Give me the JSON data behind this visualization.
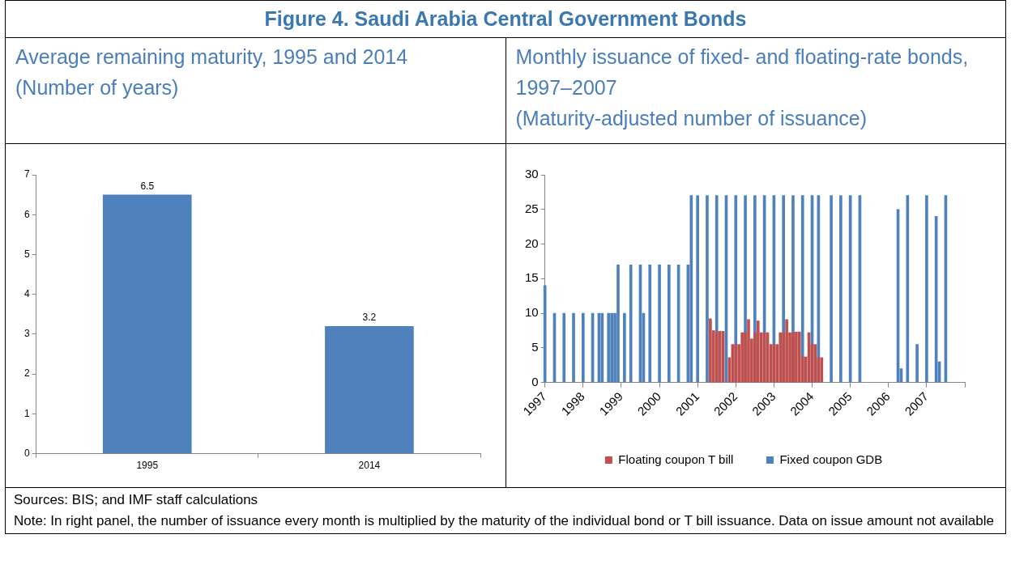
{
  "chart_data": [
    {
      "type": "other",
      "title": "Figure 4. Saudi Arabia Central Government Bonds",
      "annotations": [
        "Sources: BIS; and IMF staff calculations",
        "Note: In right panel, the number of issuance every month is multiplied by the maturity of the individual bond or T bill issuance. Data on issue amount not available"
      ]
    },
    {
      "type": "bar",
      "title": "Average remaining maturity, 1995 and 2014",
      "subtitle": "(Number of years)",
      "categories": [
        "1995",
        "2014"
      ],
      "values": [
        6.5,
        3.2
      ],
      "color": "#4f81bd",
      "ylim": [
        0,
        7
      ],
      "yticks": [
        0,
        1,
        2,
        3,
        4,
        5,
        6,
        7
      ],
      "data_labels": true,
      "grid": false,
      "legend": false
    },
    {
      "type": "bar",
      "title": "Monthly issuance of fixed- and floating-rate bonds, 1997–2007",
      "subtitle": "(Maturity-adjusted number of issuance)",
      "xlim": [
        "1997",
        "2008"
      ],
      "xticks": [
        "1997",
        "1998",
        "1999",
        "2000",
        "2001",
        "2002",
        "2003",
        "2004",
        "2005",
        "2006",
        "2007",
        {
          "value": "2008",
          "label": null
        }
      ],
      "ylim": [
        0,
        30
      ],
      "yticks": [
        0,
        5,
        10,
        15,
        20,
        25,
        30
      ],
      "grid": false,
      "legend": "bottom",
      "series": [
        {
          "name": "Floating coupon T bill",
          "color": "#c0504d",
          "x": [
            "2001-05",
            "2001-06",
            "2001-07",
            "2001-08",
            "2001-09",
            "2001-11",
            "2001-12",
            "2002-01",
            "2002-02",
            "2002-03",
            "2002-04",
            "2002-05",
            "2002-06",
            "2002-07",
            "2002-08",
            "2002-09",
            "2002-10",
            "2002-11",
            "2002-12",
            "2003-01",
            "2003-02",
            "2003-03",
            "2003-04",
            "2003-05",
            "2003-06",
            "2003-07",
            "2003-08",
            "2003-09",
            "2003-10",
            "2003-11",
            "2003-12",
            "2004-01",
            "2004-02",
            "2004-03",
            "2004-04"
          ],
          "values": [
            9.2,
            7.5,
            7.3,
            7.4,
            7.4,
            3.6,
            5.5,
            5.5,
            5.5,
            7.2,
            7.2,
            9.1,
            6.3,
            7.2,
            8.9,
            7.2,
            7.2,
            7.2,
            5.5,
            5.5,
            5.5,
            7.2,
            7.2,
            9.1,
            7.2,
            7.2,
            7.3,
            7.3,
            3.7,
            3.7,
            7.2,
            5.5,
            5.5,
            3.6,
            3.6
          ]
        },
        {
          "name": "Fixed coupon GDB",
          "color": "#4f81bd",
          "x": [
            "1997-01",
            "1997-04",
            "1997-07",
            "1997-10",
            "1998-01",
            "1998-04",
            "1998-06",
            "1998-07",
            "1998-09",
            "1998-10",
            "1998-11",
            "1998-12",
            "1999-02",
            "1999-04",
            "1999-07",
            "1999-08",
            "1999-10",
            "2000-01",
            "2000-04",
            "2000-07",
            "2000-10",
            "2000-11",
            "2001-01",
            "2001-04",
            "2001-07",
            "2001-10",
            "2002-01",
            "2002-04",
            "2002-07",
            "2002-10",
            "2003-01",
            "2003-04",
            "2003-07",
            "2003-10",
            "2004-01",
            "2004-03",
            "2004-07",
            "2004-10",
            "2005-01",
            "2005-04",
            "2006-04",
            "2006-05",
            "2006-07",
            "2006-10",
            "2007-01",
            "2007-04",
            "2007-05",
            "2007-07"
          ],
          "values": [
            14,
            10,
            10,
            10,
            10,
            10,
            10,
            10,
            10,
            10,
            10,
            17,
            10,
            17,
            17,
            10,
            17,
            17,
            17,
            17,
            17,
            27,
            27,
            27,
            27,
            27,
            27,
            27,
            27,
            27,
            27,
            27,
            27,
            27,
            27,
            27,
            27,
            27,
            27,
            27,
            25,
            2,
            27,
            5.5,
            27,
            24,
            3,
            27
          ]
        }
      ]
    }
  ]
}
